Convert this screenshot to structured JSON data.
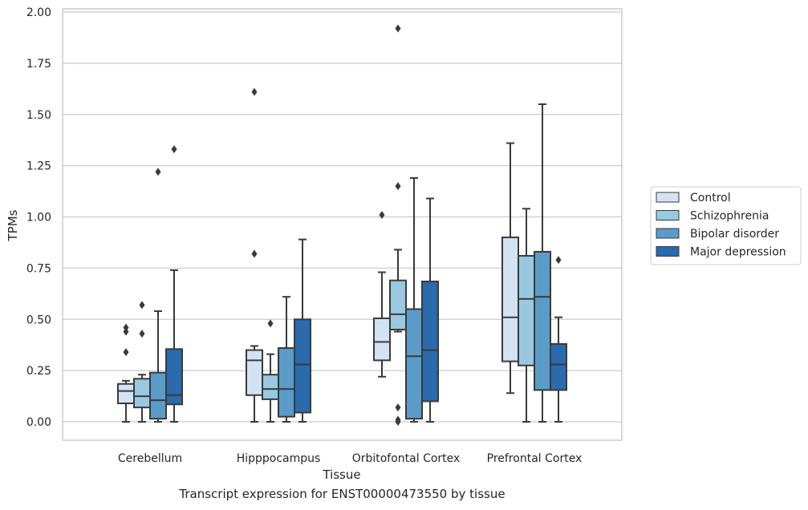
{
  "caption": "Transcript expression for ENST00000473550 by tissue",
  "chart_data": {
    "type": "box",
    "xlabel": "Tissue",
    "ylabel": "TPMs",
    "ylim": [
      -0.09,
      2.02
    ],
    "yticks": [
      0.0,
      0.25,
      0.5,
      0.75,
      1.0,
      1.25,
      1.5,
      1.75,
      2.0
    ],
    "ytick_labels": [
      "0.00",
      "0.25",
      "0.50",
      "0.75",
      "1.00",
      "1.25",
      "1.50",
      "1.75",
      "2.00"
    ],
    "grid": true,
    "legend_placement": "right",
    "categories": [
      "Cerebellum",
      "Hipppocampus",
      "Orbitofontal Cortex",
      "Prefrontal Cortex"
    ],
    "series": [
      {
        "name": "Control",
        "color": "#d3e3f3",
        "boxes": [
          {
            "whislo": 0.0,
            "q1": 0.09,
            "med": 0.15,
            "q3": 0.185,
            "whishi": 0.2,
            "fliers": [
              0.34,
              0.44,
              0.46
            ]
          },
          {
            "whislo": 0.0,
            "q1": 0.13,
            "med": 0.3,
            "q3": 0.35,
            "whishi": 0.37,
            "fliers": [
              0.82,
              1.61
            ]
          },
          {
            "whislo": 0.22,
            "q1": 0.3,
            "med": 0.39,
            "q3": 0.505,
            "whishi": 0.73,
            "fliers": [
              1.01
            ]
          },
          {
            "whislo": 0.14,
            "q1": 0.295,
            "med": 0.51,
            "q3": 0.9,
            "whishi": 1.36,
            "fliers": []
          }
        ]
      },
      {
        "name": "Schizophrenia",
        "color": "#9ac8e0",
        "boxes": [
          {
            "whislo": 0.0,
            "q1": 0.07,
            "med": 0.125,
            "q3": 0.21,
            "whishi": 0.23,
            "fliers": [
              0.43,
              0.57
            ]
          },
          {
            "whislo": 0.0,
            "q1": 0.11,
            "med": 0.16,
            "q3": 0.23,
            "whishi": 0.33,
            "fliers": [
              0.48
            ]
          },
          {
            "whislo": 0.44,
            "q1": 0.45,
            "med": 0.525,
            "q3": 0.69,
            "whishi": 0.84,
            "fliers": [
              0.0,
              0.01,
              0.07,
              1.15,
              1.92
            ]
          },
          {
            "whislo": 0.0,
            "q1": 0.275,
            "med": 0.6,
            "q3": 0.81,
            "whishi": 1.04,
            "fliers": []
          }
        ]
      },
      {
        "name": "Bipolar disorder",
        "color": "#5b9bc8",
        "boxes": [
          {
            "whislo": 0.0,
            "q1": 0.015,
            "med": 0.105,
            "q3": 0.24,
            "whishi": 0.54,
            "fliers": [
              1.22
            ]
          },
          {
            "whislo": 0.0,
            "q1": 0.025,
            "med": 0.16,
            "q3": 0.36,
            "whishi": 0.61,
            "fliers": []
          },
          {
            "whislo": 0.0,
            "q1": 0.015,
            "med": 0.32,
            "q3": 0.55,
            "whishi": 1.19,
            "fliers": []
          },
          {
            "whislo": 0.0,
            "q1": 0.155,
            "med": 0.61,
            "q3": 0.83,
            "whishi": 1.55,
            "fliers": []
          }
        ]
      },
      {
        "name": "Major depression",
        "color": "#2a6aad",
        "boxes": [
          {
            "whislo": 0.0,
            "q1": 0.085,
            "med": 0.13,
            "q3": 0.355,
            "whishi": 0.74,
            "fliers": [
              1.33
            ]
          },
          {
            "whislo": 0.0,
            "q1": 0.045,
            "med": 0.28,
            "q3": 0.5,
            "whishi": 0.89,
            "fliers": []
          },
          {
            "whislo": 0.0,
            "q1": 0.1,
            "med": 0.35,
            "q3": 0.685,
            "whishi": 1.09,
            "fliers": []
          },
          {
            "whislo": 0.0,
            "q1": 0.155,
            "med": 0.28,
            "q3": 0.38,
            "whishi": 0.51,
            "fliers": [
              0.79
            ]
          }
        ]
      }
    ]
  }
}
